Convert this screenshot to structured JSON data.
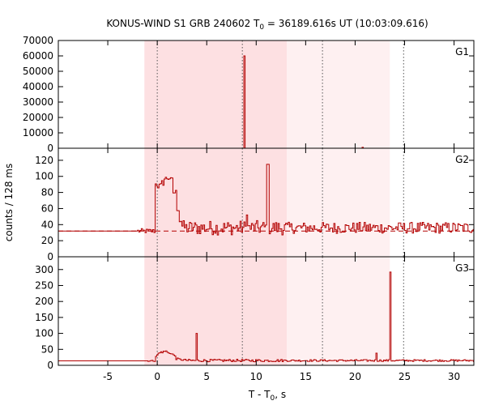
{
  "chart_data": {
    "type": "line",
    "title": "KONUS-WIND S1 GRB 240602 T₀ = 36189.616s UT (10:03:09.616)",
    "title_parts": {
      "prefix": "KONUS-WIND S1 GRB 240602 T",
      "subscript": "0",
      "suffix": " = 36189.616s UT (10:03:09.616)"
    },
    "xlabel": "T - T₀, s",
    "xlabel_parts": {
      "prefix": "T - T",
      "subscript": "0",
      "suffix": ", s"
    },
    "ylabel": "counts / 128 ms",
    "xlim": [
      -10,
      32
    ],
    "xticks": [
      -5,
      0,
      5,
      10,
      15,
      20,
      25,
      30
    ],
    "shaded_intervals": [
      {
        "x0": -1.3,
        "x1": 13.1,
        "color": "#fde0e2"
      },
      {
        "x0": 13.1,
        "x1": 23.5,
        "color": "#fef0f1"
      }
    ],
    "vertical_markers": [
      0.0,
      8.6,
      16.7,
      24.9
    ],
    "line_color": "#b30000",
    "panels": [
      {
        "name": "G1",
        "ylim": [
          0,
          70000
        ],
        "yticks": [
          0,
          10000,
          20000,
          30000,
          40000,
          50000,
          60000,
          70000
        ],
        "background_level": 0,
        "spikes": [
          {
            "t": 8.75,
            "value": 60000,
            "width": 0.128
          },
          {
            "t": 20.7,
            "value": 600,
            "width": 0.128
          }
        ]
      },
      {
        "name": "G2",
        "ylim": [
          0,
          135
        ],
        "yticks": [
          0,
          20,
          40,
          60,
          80,
          100,
          120
        ],
        "background_level": 32,
        "peak_profile": [
          90,
          88,
          92,
          97,
          98,
          95,
          80,
          60,
          45
        ],
        "spikes": [
          {
            "t": 11.0,
            "value": 115,
            "width": 0.256
          },
          {
            "t": 9.0,
            "value": 52,
            "width": 0.128
          }
        ]
      },
      {
        "name": "G3",
        "ylim": [
          0,
          340
        ],
        "yticks": [
          0,
          50,
          100,
          150,
          200,
          250,
          300
        ],
        "background_level": 14,
        "peak_profile": [
          30,
          38,
          42,
          44,
          40,
          35,
          30
        ],
        "spikes": [
          {
            "t": 3.9,
            "value": 100,
            "width": 0.128
          },
          {
            "t": 23.4,
            "value": 292,
            "width": 0.128
          },
          {
            "t": 22.0,
            "value": 38,
            "width": 0.128
          }
        ]
      }
    ]
  }
}
